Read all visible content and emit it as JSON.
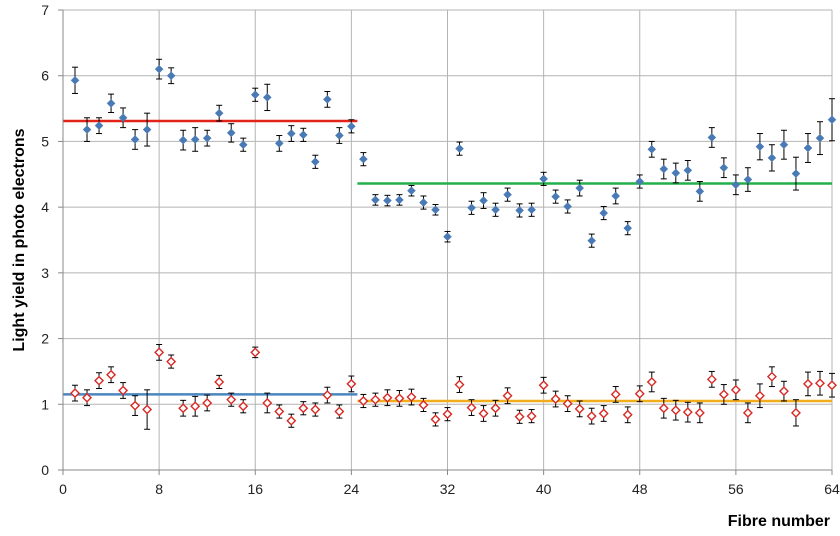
{
  "chart_data": {
    "type": "scatter",
    "xlabel": "Fibre number",
    "ylabel": "Light yield in photo electrons",
    "xlim": [
      0,
      64
    ],
    "ylim": [
      0,
      7
    ],
    "x_ticks": [
      0,
      8,
      16,
      24,
      32,
      40,
      48,
      56,
      64
    ],
    "y_ticks": [
      0,
      1,
      2,
      3,
      4,
      5,
      6,
      7
    ],
    "grid": true,
    "legend": "none",
    "series": [
      {
        "marker": "diamond-filled",
        "color": "#4a7ab5",
        "x": [
          1,
          2,
          3,
          4,
          5,
          6,
          7,
          8,
          9,
          10,
          11,
          12,
          13,
          14,
          15,
          16,
          17,
          18,
          19,
          20,
          21,
          22,
          23,
          24,
          25,
          26,
          27,
          28,
          29,
          30,
          31,
          32,
          33,
          34,
          35,
          36,
          37,
          38,
          39,
          40,
          41,
          42,
          43,
          44,
          45,
          46,
          47,
          48,
          49,
          50,
          51,
          52,
          53,
          54,
          55,
          56,
          57,
          58,
          59,
          60,
          61,
          62,
          63,
          64
        ],
        "y": [
          5.93,
          5.18,
          5.24,
          5.58,
          5.36,
          5.03,
          5.18,
          6.1,
          6.0,
          5.02,
          5.03,
          5.05,
          5.43,
          5.13,
          4.95,
          5.71,
          5.67,
          4.97,
          5.12,
          5.1,
          4.69,
          5.64,
          5.09,
          5.23,
          4.73,
          4.11,
          4.1,
          4.11,
          4.25,
          4.07,
          3.96,
          3.55,
          4.89,
          3.99,
          4.1,
          3.96,
          4.19,
          3.95,
          3.96,
          4.43,
          4.16,
          4.01,
          4.29,
          3.49,
          3.91,
          4.17,
          3.68,
          4.39,
          4.88,
          4.58,
          4.52,
          4.56,
          4.24,
          5.06,
          4.6,
          4.34,
          4.42,
          4.92,
          4.75,
          4.95,
          4.51,
          4.9,
          5.05,
          5.33
        ],
        "err": [
          0.2,
          0.18,
          0.12,
          0.14,
          0.15,
          0.15,
          0.25,
          0.15,
          0.12,
          0.15,
          0.18,
          0.12,
          0.12,
          0.14,
          0.1,
          0.1,
          0.2,
          0.12,
          0.12,
          0.1,
          0.1,
          0.12,
          0.12,
          0.1,
          0.1,
          0.08,
          0.08,
          0.08,
          0.08,
          0.1,
          0.08,
          0.08,
          0.1,
          0.1,
          0.12,
          0.1,
          0.1,
          0.1,
          0.1,
          0.1,
          0.1,
          0.1,
          0.12,
          0.1,
          0.1,
          0.12,
          0.1,
          0.1,
          0.12,
          0.15,
          0.15,
          0.15,
          0.15,
          0.15,
          0.15,
          0.15,
          0.18,
          0.2,
          0.2,
          0.22,
          0.25,
          0.22,
          0.25,
          0.32
        ]
      },
      {
        "marker": "diamond-open",
        "color": "#d62a24",
        "x": [
          1,
          2,
          3,
          4,
          5,
          6,
          7,
          8,
          9,
          10,
          11,
          12,
          13,
          14,
          15,
          16,
          17,
          18,
          19,
          20,
          21,
          22,
          23,
          24,
          25,
          26,
          27,
          28,
          29,
          30,
          31,
          32,
          33,
          34,
          35,
          36,
          37,
          38,
          39,
          40,
          41,
          42,
          43,
          44,
          45,
          46,
          47,
          48,
          49,
          50,
          51,
          52,
          53,
          54,
          55,
          56,
          57,
          58,
          59,
          60,
          61,
          62,
          63,
          64
        ],
        "y": [
          1.17,
          1.1,
          1.36,
          1.45,
          1.21,
          0.98,
          0.92,
          1.79,
          1.65,
          0.94,
          0.97,
          1.02,
          1.34,
          1.07,
          0.97,
          1.79,
          1.02,
          0.89,
          0.75,
          0.94,
          0.92,
          1.14,
          0.89,
          1.31,
          1.05,
          1.07,
          1.1,
          1.09,
          1.11,
          0.99,
          0.77,
          0.85,
          1.3,
          0.95,
          0.86,
          0.94,
          1.13,
          0.81,
          0.82,
          1.29,
          1.08,
          1.01,
          0.93,
          0.82,
          0.86,
          1.15,
          0.84,
          1.16,
          1.34,
          0.94,
          0.91,
          0.88,
          0.87,
          1.38,
          1.15,
          1.22,
          0.87,
          1.13,
          1.42,
          1.2,
          0.87,
          1.31,
          1.32,
          1.29
        ],
        "err": [
          0.12,
          0.12,
          0.12,
          0.12,
          0.12,
          0.15,
          0.3,
          0.12,
          0.1,
          0.12,
          0.15,
          0.12,
          0.1,
          0.1,
          0.1,
          0.08,
          0.15,
          0.1,
          0.1,
          0.1,
          0.1,
          0.12,
          0.1,
          0.12,
          0.1,
          0.1,
          0.12,
          0.12,
          0.12,
          0.1,
          0.1,
          0.1,
          0.12,
          0.12,
          0.12,
          0.12,
          0.12,
          0.1,
          0.1,
          0.12,
          0.12,
          0.12,
          0.12,
          0.12,
          0.12,
          0.12,
          0.12,
          0.12,
          0.15,
          0.15,
          0.15,
          0.15,
          0.15,
          0.12,
          0.15,
          0.15,
          0.15,
          0.18,
          0.15,
          0.15,
          0.2,
          0.18,
          0.18,
          0.18
        ]
      }
    ],
    "reference_lines": [
      {
        "y": 5.31,
        "x_start": 0,
        "x_end": 24.5,
        "color": "#e32219"
      },
      {
        "y": 4.36,
        "x_start": 24.5,
        "x_end": 64,
        "color": "#22b04a"
      },
      {
        "y": 1.15,
        "x_start": 0,
        "x_end": 24.5,
        "color": "#4a86c0"
      },
      {
        "y": 1.05,
        "x_start": 24.5,
        "x_end": 64,
        "color": "#f2ad1c"
      }
    ]
  }
}
